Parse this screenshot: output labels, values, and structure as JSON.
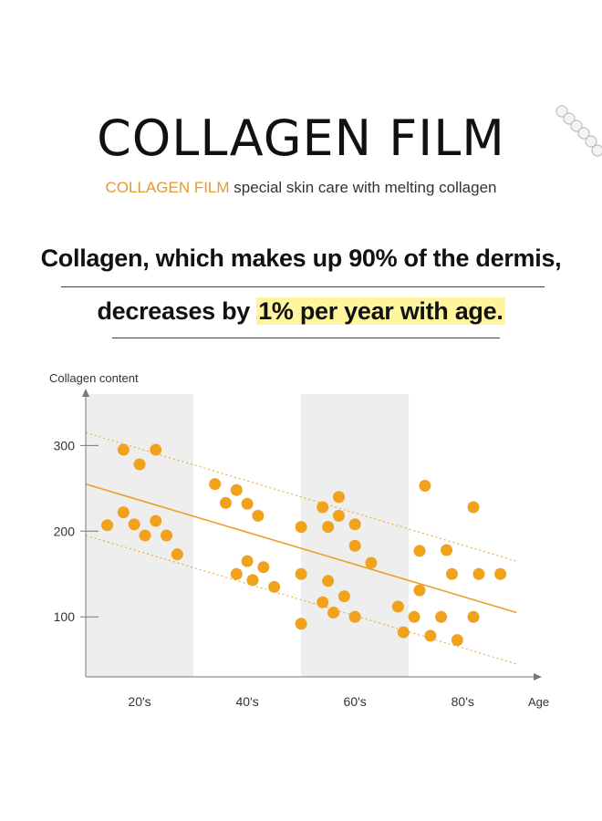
{
  "header": {
    "title": "COLLAGEN FILM",
    "subtitle_accent": "COLLAGEN FILM",
    "subtitle_rest": " special skin care with melting collagen"
  },
  "headline": {
    "line1": "Collagen, which makes up 90% of the dermis,",
    "line2_before": "decreases by ",
    "line2_highlight": "1% per year with age."
  },
  "colors": {
    "accent": "#e39a2d",
    "dot": "#f0a21c",
    "trend": "#e8a228",
    "band": "#eeeeee",
    "highlight": "#fff59e"
  },
  "chart_data": {
    "type": "scatter",
    "ylabel": "Collagen content",
    "xlabel": "Age",
    "ylim": [
      30,
      360
    ],
    "xlim": [
      10,
      93
    ],
    "yticks": [
      300,
      200,
      100
    ],
    "xticks": [
      {
        "label": "20's",
        "value": 20
      },
      {
        "label": "40's",
        "value": 40
      },
      {
        "label": "60's",
        "value": 60
      },
      {
        "label": "80's",
        "value": 80
      }
    ],
    "shaded_bands": [
      [
        10,
        30
      ],
      [
        50,
        70
      ]
    ],
    "trend_line": {
      "start": [
        10,
        255
      ],
      "end": [
        90,
        105
      ]
    },
    "band_lines": [
      {
        "start": [
          10,
          315
        ],
        "end": [
          90,
          165
        ]
      },
      {
        "start": [
          10,
          195
        ],
        "end": [
          90,
          45
        ]
      }
    ],
    "points": [
      [
        17,
        295
      ],
      [
        20,
        278
      ],
      [
        23,
        295
      ],
      [
        14,
        207
      ],
      [
        17,
        222
      ],
      [
        19,
        208
      ],
      [
        21,
        195
      ],
      [
        23,
        212
      ],
      [
        25,
        195
      ],
      [
        27,
        173
      ],
      [
        34,
        255
      ],
      [
        36,
        233
      ],
      [
        38,
        248
      ],
      [
        40,
        232
      ],
      [
        42,
        218
      ],
      [
        38,
        150
      ],
      [
        40,
        165
      ],
      [
        41,
        143
      ],
      [
        43,
        158
      ],
      [
        45,
        135
      ],
      [
        50,
        205
      ],
      [
        50,
        150
      ],
      [
        50,
        92
      ],
      [
        54,
        228
      ],
      [
        55,
        205
      ],
      [
        57,
        240
      ],
      [
        57,
        218
      ],
      [
        60,
        208
      ],
      [
        60,
        183
      ],
      [
        54,
        117
      ],
      [
        55,
        142
      ],
      [
        56,
        105
      ],
      [
        58,
        124
      ],
      [
        60,
        100
      ],
      [
        63,
        163
      ],
      [
        68,
        112
      ],
      [
        69,
        82
      ],
      [
        72,
        177
      ],
      [
        73,
        253
      ],
      [
        72,
        131
      ],
      [
        71,
        100
      ],
      [
        74,
        78
      ],
      [
        76,
        100
      ],
      [
        77,
        178
      ],
      [
        78,
        150
      ],
      [
        79,
        73
      ],
      [
        82,
        228
      ],
      [
        83,
        150
      ],
      [
        82,
        100
      ],
      [
        87,
        150
      ]
    ]
  }
}
